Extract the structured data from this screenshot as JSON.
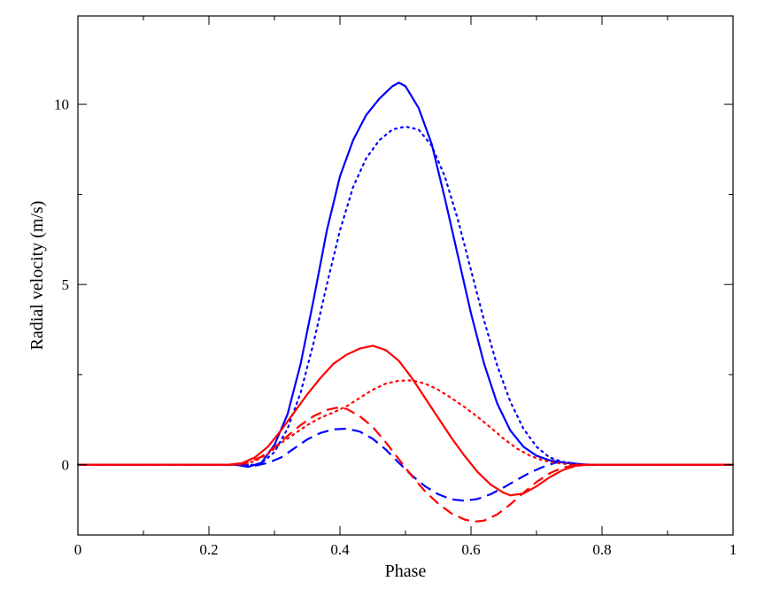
{
  "chart_data": {
    "type": "line",
    "xlabel": "Phase",
    "ylabel": "Radial velocity (m/s)",
    "xlim": [
      0,
      1
    ],
    "ylim": [
      -1.95,
      12.45
    ],
    "grid": false,
    "x_ticks": [
      0,
      0.2,
      0.4,
      0.6,
      0.8,
      1
    ],
    "x_tick_labels": [
      "0",
      "0.2",
      "0.4",
      "0.6",
      "0.8",
      "1"
    ],
    "y_ticks": [
      0,
      5,
      10
    ],
    "y_tick_labels": [
      "0",
      "5",
      "10"
    ],
    "series": [
      {
        "color": "#0000ff",
        "style": "solid",
        "points": [
          [
            0,
            0
          ],
          [
            0.24,
            0
          ],
          [
            0.26,
            -0.06
          ],
          [
            0.28,
            0.05
          ],
          [
            0.3,
            0.55
          ],
          [
            0.32,
            1.4
          ],
          [
            0.34,
            2.8
          ],
          [
            0.36,
            4.6
          ],
          [
            0.38,
            6.5
          ],
          [
            0.4,
            8.0
          ],
          [
            0.42,
            9.0
          ],
          [
            0.44,
            9.7
          ],
          [
            0.46,
            10.15
          ],
          [
            0.48,
            10.5
          ],
          [
            0.49,
            10.6
          ],
          [
            0.5,
            10.5
          ],
          [
            0.52,
            9.9
          ],
          [
            0.54,
            8.9
          ],
          [
            0.56,
            7.4
          ],
          [
            0.58,
            5.8
          ],
          [
            0.6,
            4.2
          ],
          [
            0.62,
            2.8
          ],
          [
            0.64,
            1.7
          ],
          [
            0.66,
            0.95
          ],
          [
            0.68,
            0.5
          ],
          [
            0.7,
            0.25
          ],
          [
            0.72,
            0.12
          ],
          [
            0.74,
            0.06
          ],
          [
            0.76,
            0.02
          ],
          [
            0.78,
            0
          ],
          [
            1.0,
            0
          ]
        ]
      },
      {
        "color": "#0000ff",
        "style": "dotted",
        "points": [
          [
            0,
            0
          ],
          [
            0.25,
            0
          ],
          [
            0.26,
            -0.02
          ],
          [
            0.28,
            0.04
          ],
          [
            0.3,
            0.35
          ],
          [
            0.32,
            1.0
          ],
          [
            0.34,
            2.0
          ],
          [
            0.36,
            3.4
          ],
          [
            0.38,
            5.0
          ],
          [
            0.4,
            6.5
          ],
          [
            0.42,
            7.7
          ],
          [
            0.44,
            8.5
          ],
          [
            0.46,
            9.0
          ],
          [
            0.48,
            9.3
          ],
          [
            0.5,
            9.38
          ],
          [
            0.52,
            9.3
          ],
          [
            0.54,
            8.85
          ],
          [
            0.56,
            8.0
          ],
          [
            0.58,
            6.8
          ],
          [
            0.6,
            5.4
          ],
          [
            0.62,
            4.0
          ],
          [
            0.64,
            2.75
          ],
          [
            0.66,
            1.75
          ],
          [
            0.68,
            1.0
          ],
          [
            0.7,
            0.5
          ],
          [
            0.72,
            0.2
          ],
          [
            0.74,
            0.08
          ],
          [
            0.76,
            0.02
          ],
          [
            0.78,
            0
          ],
          [
            1.0,
            0
          ]
        ]
      },
      {
        "color": "#0000ff",
        "style": "dashed",
        "points": [
          [
            0,
            0
          ],
          [
            0.25,
            0
          ],
          [
            0.27,
            -0.03
          ],
          [
            0.29,
            0.05
          ],
          [
            0.31,
            0.2
          ],
          [
            0.33,
            0.45
          ],
          [
            0.35,
            0.7
          ],
          [
            0.37,
            0.88
          ],
          [
            0.39,
            0.98
          ],
          [
            0.41,
            1.0
          ],
          [
            0.43,
            0.92
          ],
          [
            0.45,
            0.72
          ],
          [
            0.47,
            0.42
          ],
          [
            0.49,
            0.05
          ],
          [
            0.51,
            -0.3
          ],
          [
            0.53,
            -0.6
          ],
          [
            0.55,
            -0.82
          ],
          [
            0.57,
            -0.96
          ],
          [
            0.59,
            -1.0
          ],
          [
            0.61,
            -0.95
          ],
          [
            0.63,
            -0.82
          ],
          [
            0.65,
            -0.63
          ],
          [
            0.67,
            -0.42
          ],
          [
            0.69,
            -0.22
          ],
          [
            0.71,
            -0.06
          ],
          [
            0.73,
            0.06
          ],
          [
            0.74,
            0.08
          ],
          [
            0.76,
            0.03
          ],
          [
            0.78,
            0
          ],
          [
            1.0,
            0
          ]
        ]
      },
      {
        "color": "#ff0000",
        "style": "solid",
        "points": [
          [
            0,
            0
          ],
          [
            0.23,
            0
          ],
          [
            0.25,
            0.04
          ],
          [
            0.27,
            0.2
          ],
          [
            0.29,
            0.5
          ],
          [
            0.31,
            0.95
          ],
          [
            0.33,
            1.45
          ],
          [
            0.35,
            1.95
          ],
          [
            0.37,
            2.4
          ],
          [
            0.39,
            2.8
          ],
          [
            0.41,
            3.05
          ],
          [
            0.43,
            3.22
          ],
          [
            0.45,
            3.3
          ],
          [
            0.47,
            3.18
          ],
          [
            0.49,
            2.88
          ],
          [
            0.51,
            2.4
          ],
          [
            0.53,
            1.85
          ],
          [
            0.55,
            1.3
          ],
          [
            0.57,
            0.75
          ],
          [
            0.59,
            0.25
          ],
          [
            0.61,
            -0.2
          ],
          [
            0.63,
            -0.55
          ],
          [
            0.65,
            -0.78
          ],
          [
            0.66,
            -0.85
          ],
          [
            0.68,
            -0.8
          ],
          [
            0.7,
            -0.6
          ],
          [
            0.72,
            -0.35
          ],
          [
            0.74,
            -0.15
          ],
          [
            0.76,
            -0.03
          ],
          [
            0.78,
            0
          ],
          [
            1.0,
            0
          ]
        ]
      },
      {
        "color": "#ff0000",
        "style": "dotted",
        "points": [
          [
            0,
            0
          ],
          [
            0.25,
            0
          ],
          [
            0.27,
            0.1
          ],
          [
            0.29,
            0.3
          ],
          [
            0.31,
            0.6
          ],
          [
            0.33,
            0.85
          ],
          [
            0.35,
            1.1
          ],
          [
            0.37,
            1.3
          ],
          [
            0.39,
            1.45
          ],
          [
            0.41,
            1.62
          ],
          [
            0.43,
            1.85
          ],
          [
            0.45,
            2.08
          ],
          [
            0.47,
            2.25
          ],
          [
            0.49,
            2.33
          ],
          [
            0.51,
            2.34
          ],
          [
            0.53,
            2.25
          ],
          [
            0.55,
            2.08
          ],
          [
            0.57,
            1.85
          ],
          [
            0.59,
            1.6
          ],
          [
            0.61,
            1.33
          ],
          [
            0.63,
            1.03
          ],
          [
            0.65,
            0.72
          ],
          [
            0.67,
            0.45
          ],
          [
            0.69,
            0.25
          ],
          [
            0.71,
            0.12
          ],
          [
            0.73,
            0.05
          ],
          [
            0.75,
            0.01
          ],
          [
            0.77,
            0
          ],
          [
            1.0,
            0
          ]
        ]
      },
      {
        "color": "#ff0000",
        "style": "dashed",
        "points": [
          [
            0,
            0
          ],
          [
            0.24,
            0
          ],
          [
            0.26,
            0.06
          ],
          [
            0.28,
            0.22
          ],
          [
            0.3,
            0.48
          ],
          [
            0.32,
            0.8
          ],
          [
            0.34,
            1.1
          ],
          [
            0.36,
            1.35
          ],
          [
            0.38,
            1.52
          ],
          [
            0.395,
            1.58
          ],
          [
            0.41,
            1.55
          ],
          [
            0.43,
            1.35
          ],
          [
            0.45,
            1.05
          ],
          [
            0.47,
            0.62
          ],
          [
            0.49,
            0.15
          ],
          [
            0.51,
            -0.32
          ],
          [
            0.53,
            -0.74
          ],
          [
            0.55,
            -1.08
          ],
          [
            0.57,
            -1.35
          ],
          [
            0.59,
            -1.52
          ],
          [
            0.605,
            -1.58
          ],
          [
            0.62,
            -1.55
          ],
          [
            0.64,
            -1.38
          ],
          [
            0.66,
            -1.1
          ],
          [
            0.68,
            -0.78
          ],
          [
            0.7,
            -0.48
          ],
          [
            0.72,
            -0.24
          ],
          [
            0.74,
            -0.08
          ],
          [
            0.76,
            -0.01
          ],
          [
            0.78,
            0
          ],
          [
            1.0,
            0
          ]
        ]
      }
    ]
  }
}
